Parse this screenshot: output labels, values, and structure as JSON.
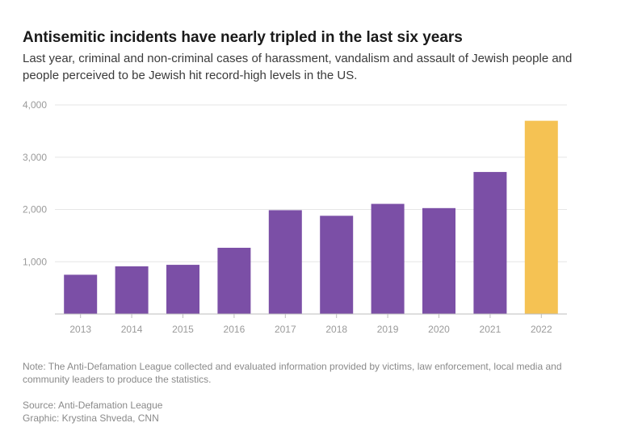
{
  "header": {
    "title": "Antisemitic incidents have nearly tripled in the last six years",
    "subtitle": "Last year, criminal and non-criminal cases of harassment, vandalism and assault of Jewish people and people perceived to be Jewish hit record-high levels in the US."
  },
  "footer": {
    "note": "Note: The Anti-Defamation League collected and evaluated information provided by victims, law enforcement, local media and community leaders to produce the statistics.",
    "source": "Source: Anti-Defamation League",
    "credit": "Graphic: Krystina Shveda, CNN"
  },
  "colors": {
    "bar": "#7b4fa6",
    "highlight": "#f5c253",
    "grid": "#e6e6e6",
    "axis": "#bdbdbd"
  },
  "chart_data": {
    "type": "bar",
    "categories": [
      "2013",
      "2014",
      "2015",
      "2016",
      "2017",
      "2018",
      "2019",
      "2020",
      "2021",
      "2022"
    ],
    "values": [
      751,
      912,
      941,
      1267,
      1986,
      1879,
      2107,
      2026,
      2717,
      3697
    ],
    "highlight_index": 9,
    "ylim": [
      0,
      4000
    ],
    "yticks": [
      1000,
      2000,
      3000,
      4000
    ],
    "ytick_labels": [
      "1,000",
      "2,000",
      "3,000",
      "4,000"
    ],
    "grid": true,
    "xlabel": "",
    "ylabel": ""
  }
}
